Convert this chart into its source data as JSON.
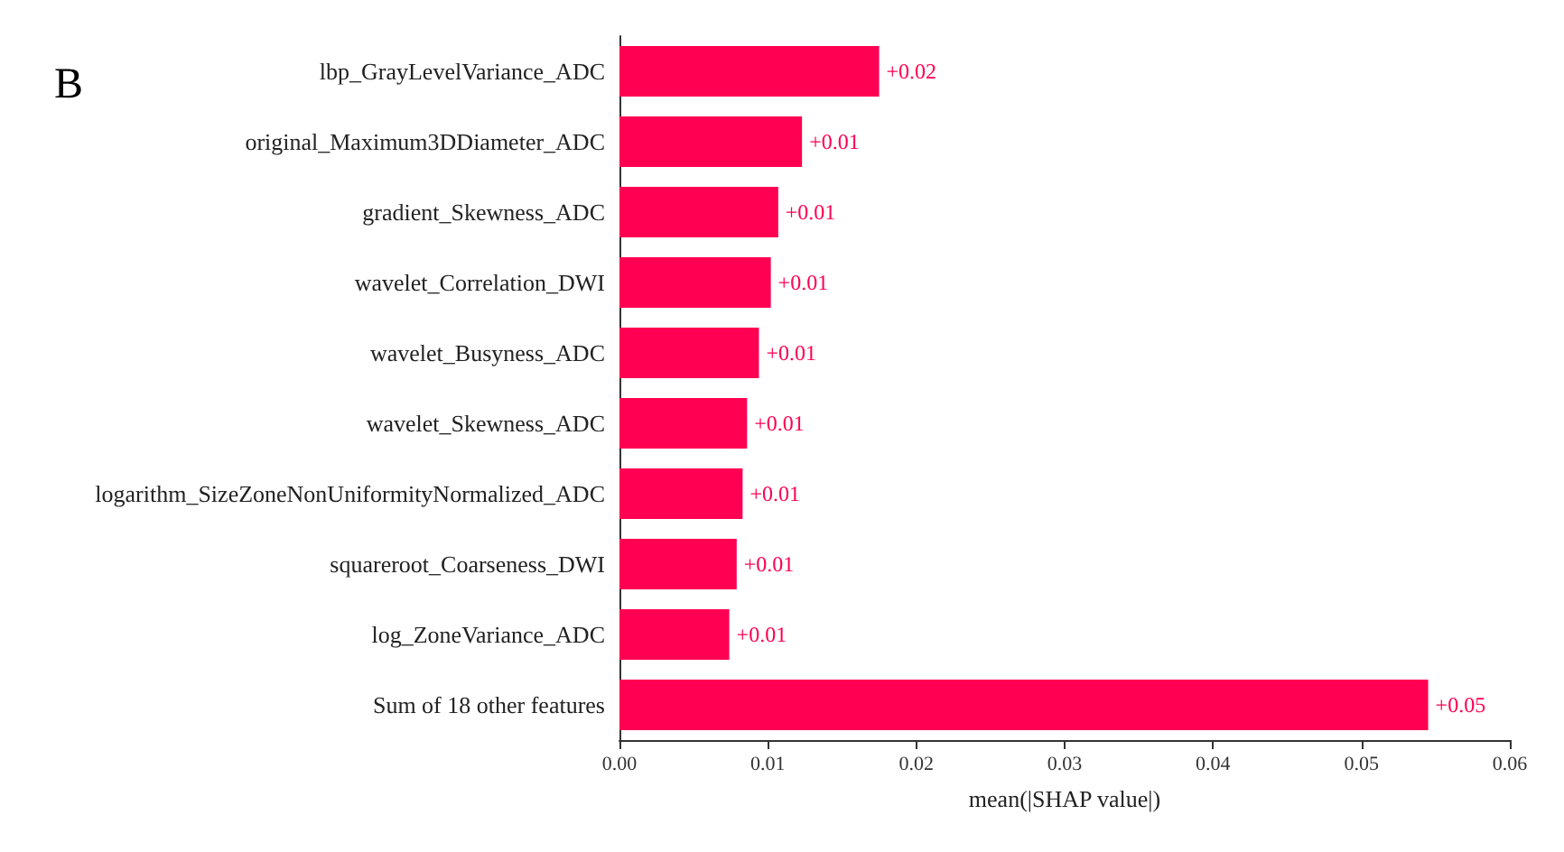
{
  "chart_data": {
    "type": "bar",
    "orientation": "horizontal",
    "xlabel": "mean(|SHAP value|)",
    "annotations": [
      "B"
    ],
    "categories": [
      "lbp_GrayLevelVariance_ADC",
      "original_Maximum3DDiameter_ADC",
      "gradient_Skewness_ADC",
      "wavelet_Correlation_DWI",
      "wavelet_Busyness_ADC",
      "wavelet_Skewness_ADC",
      "logarithm_SizeZoneNonUniformityNormalized_ADC",
      "squareroot_Coarseness_DWI",
      "log_ZoneVariance_ADC",
      "Sum of 18 other features"
    ],
    "values": [
      0.0175,
      0.0123,
      0.0107,
      0.0102,
      0.0094,
      0.0086,
      0.0083,
      0.0079,
      0.0074,
      0.0545
    ],
    "value_labels": [
      "+0.02",
      "+0.01",
      "+0.01",
      "+0.01",
      "+0.01",
      "+0.01",
      "+0.01",
      "+0.01",
      "+0.01",
      "+0.05"
    ],
    "color": "#ff0052",
    "xlim": [
      0,
      0.06
    ],
    "xticks": [
      {
        "value": 0,
        "label": "0.00"
      },
      {
        "value": 0.01,
        "label": "0.01"
      },
      {
        "value": 0.02,
        "label": "0.02"
      },
      {
        "value": 0.03,
        "label": "0.03"
      },
      {
        "value": 0.04,
        "label": "0.04"
      },
      {
        "value": 0.05,
        "label": "0.05"
      },
      {
        "value": 0.06,
        "label": "0.06"
      }
    ],
    "grid": false
  }
}
